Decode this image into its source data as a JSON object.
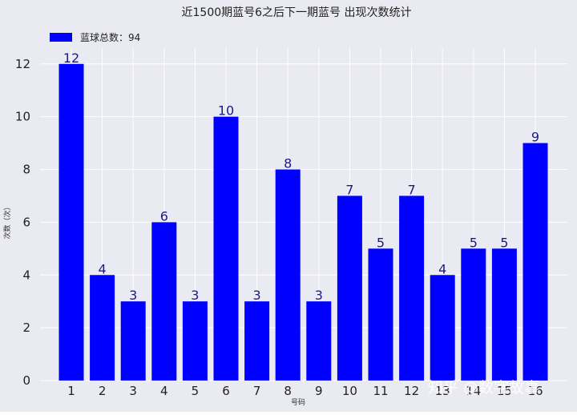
{
  "chart_data": {
    "type": "bar",
    "title": "近1500期蓝号6之后下一期蓝号 出现次数统计",
    "xlabel": "号码",
    "ylabel": "次数（次）",
    "categories": [
      "1",
      "2",
      "3",
      "4",
      "5",
      "6",
      "7",
      "8",
      "9",
      "10",
      "11",
      "12",
      "13",
      "14",
      "15",
      "16"
    ],
    "series": [
      {
        "name": "蓝球总数：94",
        "values": [
          12,
          4,
          3,
          6,
          3,
          10,
          3,
          8,
          3,
          7,
          5,
          7,
          4,
          5,
          5,
          9
        ]
      }
    ],
    "ylim": [
      0,
      12.6
    ],
    "yticks": [
      0,
      2,
      4,
      6,
      8,
      10,
      12
    ],
    "grid": true,
    "legend_position": "top-left",
    "bar_color": "#0000ff",
    "label_color": "#1a1a8c",
    "background_color": "#eaeaf2"
  },
  "watermark": {
    "text": "知乎 @数字故事"
  }
}
